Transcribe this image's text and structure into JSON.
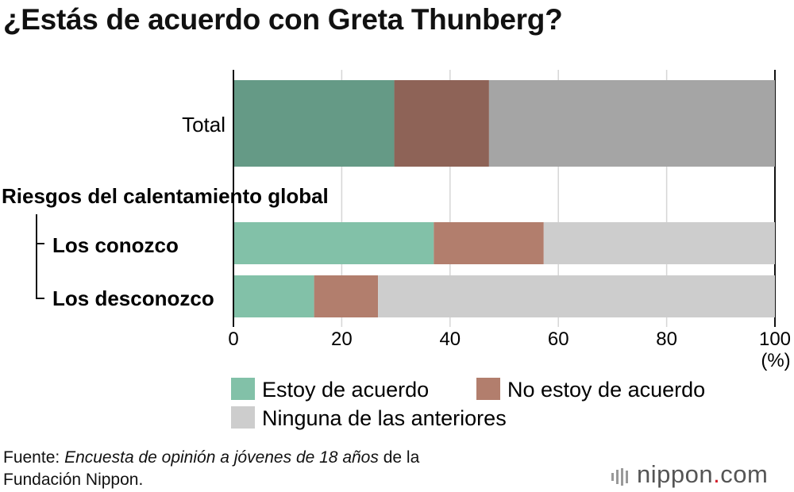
{
  "title": "¿Estás de acuerdo con Greta Thunberg?",
  "chart_data": {
    "type": "bar",
    "orientation": "horizontal",
    "stacked": true,
    "categories": [
      "Total",
      "Los conozco",
      "Los desconozco"
    ],
    "group_label": "Riesgos del calentamiento global",
    "series": [
      {
        "name": "Estoy de acuerdo",
        "values": [
          29.7,
          37.0,
          14.9
        ]
      },
      {
        "name": "No estoy de acuerdo",
        "values": [
          17.5,
          20.3,
          11.8
        ]
      },
      {
        "name": "Ninguna de las anteriores",
        "values": [
          52.8,
          42.7,
          73.3
        ]
      }
    ],
    "colors": {
      "total": [
        "#659a86",
        "#8e6357",
        "#a5a5a5"
      ],
      "group": [
        "#82c1a8",
        "#b27e6d",
        "#cdcdcd"
      ]
    },
    "xlim": [
      0,
      100
    ],
    "xticks": [
      "0",
      "20",
      "40",
      "60",
      "80",
      "100"
    ],
    "xlabel": "(%)",
    "grid": true
  },
  "legend": {
    "items": [
      {
        "label": "Estoy de acuerdo",
        "color": "#82c1a8"
      },
      {
        "label": "No estoy de acuerdo",
        "color": "#b27e6d"
      },
      {
        "label": "Ninguna de las anteriores",
        "color": "#cdcdcd"
      }
    ]
  },
  "source": {
    "prefix": "Fuente: ",
    "italic": "Encuesta de opinión a jóvenes de 18 años",
    "suffix": " de la",
    "line2": "Fundación Nippon."
  },
  "logo": {
    "name": "nippon",
    "dot": ".",
    "tld": "com"
  }
}
